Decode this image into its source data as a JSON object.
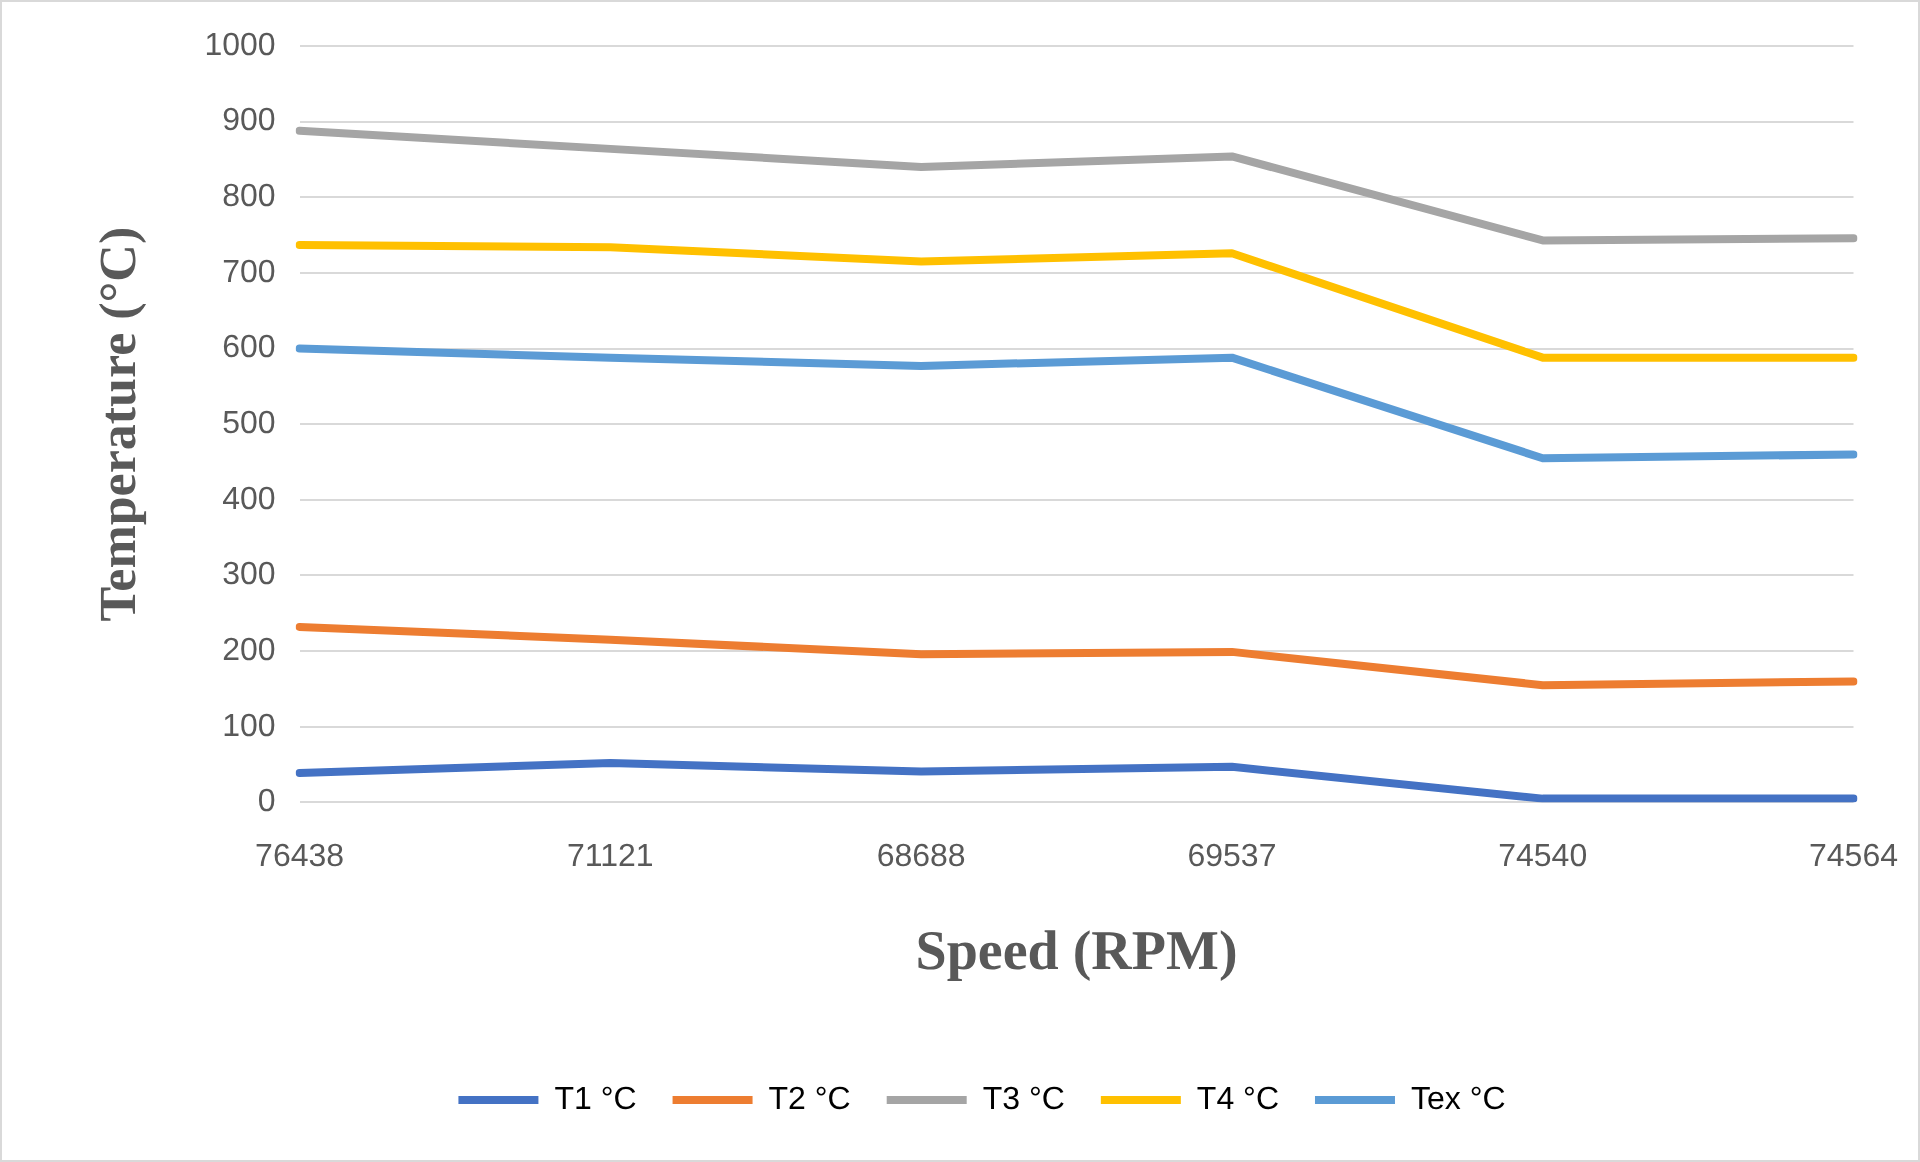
{
  "chart_data": {
    "type": "line",
    "xlabel": "Speed (RPM)",
    "ylabel": "Temperature (°C)",
    "categories": [
      "76438",
      "71121",
      "68688",
      "69537",
      "74540",
      "74564"
    ],
    "series": [
      {
        "name": "T1 °C",
        "color": "#4472c4",
        "values": [
          39,
          52,
          41,
          47,
          5,
          5
        ]
      },
      {
        "name": "T2 °C",
        "color": "#ed7d31",
        "values": [
          232,
          215,
          196,
          199,
          155,
          160
        ]
      },
      {
        "name": "T3 °C",
        "color": "#a5a5a5",
        "values": [
          888,
          864,
          840,
          854,
          743,
          746
        ]
      },
      {
        "name": "T4 °C",
        "color": "#ffc000",
        "values": [
          737,
          734,
          715,
          726,
          588,
          588
        ]
      },
      {
        "name": "Tex °C",
        "color": "#5b9bd5",
        "values": [
          600,
          588,
          577,
          588,
          455,
          460
        ]
      }
    ],
    "ylim": [
      0,
      1000
    ],
    "yticks": [
      0,
      100,
      200,
      300,
      400,
      500,
      600,
      700,
      800,
      900,
      1000
    ],
    "grid": "y",
    "legend": "bottom",
    "marker": "none",
    "line_style": "solid"
  }
}
